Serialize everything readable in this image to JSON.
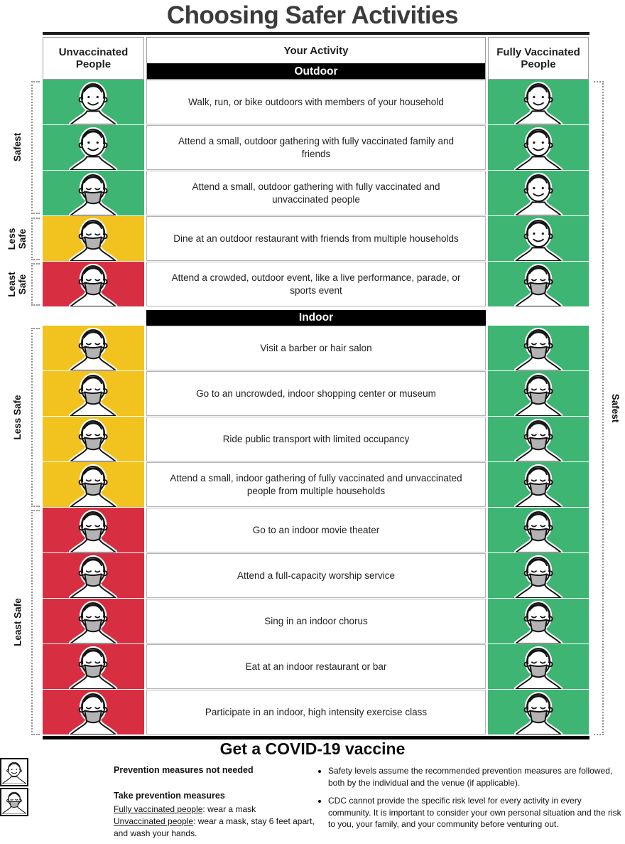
{
  "title": "Choosing Safer Activities",
  "header": {
    "left": "Unvaccinated People",
    "middle": "Your Activity",
    "right": "Fully Vaccinated People"
  },
  "colors": {
    "safest": "#3eb573",
    "less_safe": "#f2c31e",
    "least_safe": "#d72e42",
    "section_bar": "#000000",
    "mask": "#b3b3b3"
  },
  "risk_labels": {
    "outdoor_safest": "Safest",
    "outdoor_less": "Less Safe",
    "outdoor_least": "Least Safe",
    "indoor_less": "Less Safe",
    "indoor_least": "Least Safe",
    "vaccinated_side": "Safest"
  },
  "sections": [
    {
      "label": "Outdoor",
      "rows": [
        {
          "activity": "Walk, run, or bike outdoors with members of your household",
          "unvaccinated": {
            "risk": "safest",
            "mask": false
          },
          "vaccinated": {
            "risk": "safest",
            "mask": false
          }
        },
        {
          "activity": "Attend a small, outdoor gathering with fully vaccinated family and friends",
          "unvaccinated": {
            "risk": "safest",
            "mask": false
          },
          "vaccinated": {
            "risk": "safest",
            "mask": false
          }
        },
        {
          "activity": "Attend a small, outdoor gathering with fully vaccinated and unvaccinated people",
          "unvaccinated": {
            "risk": "safest",
            "mask": true
          },
          "vaccinated": {
            "risk": "safest",
            "mask": false
          }
        },
        {
          "activity": "Dine at an outdoor restaurant with friends from multiple households",
          "unvaccinated": {
            "risk": "less_safe",
            "mask": true
          },
          "vaccinated": {
            "risk": "safest",
            "mask": false
          }
        },
        {
          "activity": "Attend a crowded, outdoor event, like a live performance, parade, or sports event",
          "unvaccinated": {
            "risk": "least_safe",
            "mask": true
          },
          "vaccinated": {
            "risk": "safest",
            "mask": true
          }
        }
      ]
    },
    {
      "label": "Indoor",
      "rows": [
        {
          "activity": "Visit a barber or hair salon",
          "unvaccinated": {
            "risk": "less_safe",
            "mask": true
          },
          "vaccinated": {
            "risk": "safest",
            "mask": true
          }
        },
        {
          "activity": "Go to an uncrowded, indoor shopping center or museum",
          "unvaccinated": {
            "risk": "less_safe",
            "mask": true
          },
          "vaccinated": {
            "risk": "safest",
            "mask": true
          }
        },
        {
          "activity": "Ride public transport with limited occupancy",
          "unvaccinated": {
            "risk": "less_safe",
            "mask": true
          },
          "vaccinated": {
            "risk": "safest",
            "mask": true
          }
        },
        {
          "activity": "Attend a small, indoor gathering of fully vaccinated and unvaccinated people from multiple households",
          "unvaccinated": {
            "risk": "less_safe",
            "mask": true
          },
          "vaccinated": {
            "risk": "safest",
            "mask": true
          }
        },
        {
          "activity": "Go to an indoor movie theater",
          "unvaccinated": {
            "risk": "least_safe",
            "mask": true
          },
          "vaccinated": {
            "risk": "safest",
            "mask": true
          }
        },
        {
          "activity": "Attend a full-capacity worship service",
          "unvaccinated": {
            "risk": "least_safe",
            "mask": true
          },
          "vaccinated": {
            "risk": "safest",
            "mask": true
          }
        },
        {
          "activity": "Sing in an indoor chorus",
          "unvaccinated": {
            "risk": "least_safe",
            "mask": true
          },
          "vaccinated": {
            "risk": "safest",
            "mask": true
          }
        },
        {
          "activity": "Eat at an indoor restaurant or bar",
          "unvaccinated": {
            "risk": "least_safe",
            "mask": true
          },
          "vaccinated": {
            "risk": "safest",
            "mask": true
          }
        },
        {
          "activity": "Participate in an indoor, high intensity exercise class",
          "unvaccinated": {
            "risk": "least_safe",
            "mask": true
          },
          "vaccinated": {
            "risk": "safest",
            "mask": true
          }
        }
      ]
    }
  ],
  "footer": {
    "headline": "Get a COVID-19 vaccine",
    "legend": [
      {
        "icon": "unmasked-face-icon",
        "masked": false,
        "label": "Prevention measures not needed"
      },
      {
        "icon": "masked-face-icon",
        "masked": true,
        "label": "Take prevention measures"
      }
    ],
    "legend_details": [
      {
        "term": "Fully vaccinated people",
        "rest": ": wear a mask"
      },
      {
        "term": "Unvaccinated people",
        "rest": ": wear a mask, stay 6 feet apart, and wash your hands."
      }
    ],
    "notes": [
      "Safety levels assume the recommended prevention measures are followed, both by the individual and the venue (if applicable).",
      "CDC cannot provide the specific risk level for every activity in every community. It is important to consider your own personal situation and the risk to you, your family, and your community before venturing out."
    ]
  }
}
